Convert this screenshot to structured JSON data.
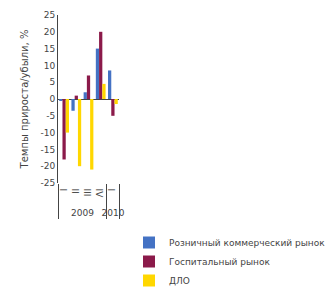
{
  "chart_data": {
    "type": "bar",
    "ylabel": "Темпы прироста/убыли, %",
    "categories": [
      [
        "2009",
        "I"
      ],
      [
        "2009",
        "II"
      ],
      [
        "2009",
        "III"
      ],
      [
        "2009",
        "IV"
      ],
      [
        "2010",
        "I"
      ]
    ],
    "series": [
      {
        "name": "Розничный коммерческий рынок",
        "color": "#4472C4",
        "values": [
          -0.5,
          -3.5,
          2.0,
          15.0,
          8.5
        ]
      },
      {
        "name": "Госпитальный рынок",
        "color": "#8B1A4A",
        "values": [
          -18.0,
          1.0,
          7.0,
          20.0,
          -5.0
        ]
      },
      {
        "name": "ДЛО",
        "color": "#FFD700",
        "values": [
          -10.0,
          -20.0,
          -21.0,
          4.5,
          -1.5
        ]
      }
    ],
    "ylim": [
      -25,
      25
    ],
    "yticks": [
      -25,
      -20,
      -15,
      -10,
      -5,
      0,
      5,
      10,
      15,
      20,
      25
    ],
    "grid": false,
    "legend": "lower right"
  }
}
